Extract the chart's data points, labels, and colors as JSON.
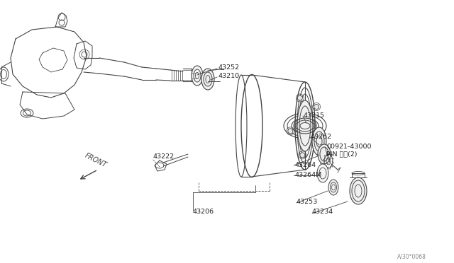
{
  "bg_color": "#ffffff",
  "line_color": "#444444",
  "watermark": "A/30°0068",
  "figsize": [
    6.4,
    3.72
  ],
  "dpi": 100,
  "labels": [
    [
      307,
      96,
      "43252"
    ],
    [
      307,
      108,
      "43210"
    ],
    [
      428,
      163,
      "43215"
    ],
    [
      438,
      193,
      "43262"
    ],
    [
      460,
      207,
      "00921-43000"
    ],
    [
      460,
      218,
      "PIN ピン(2)"
    ],
    [
      415,
      233,
      "43264"
    ],
    [
      415,
      247,
      "43264M"
    ],
    [
      418,
      285,
      "43253"
    ],
    [
      440,
      300,
      "43234"
    ],
    [
      215,
      222,
      "43222"
    ],
    [
      272,
      300,
      "43206"
    ]
  ]
}
